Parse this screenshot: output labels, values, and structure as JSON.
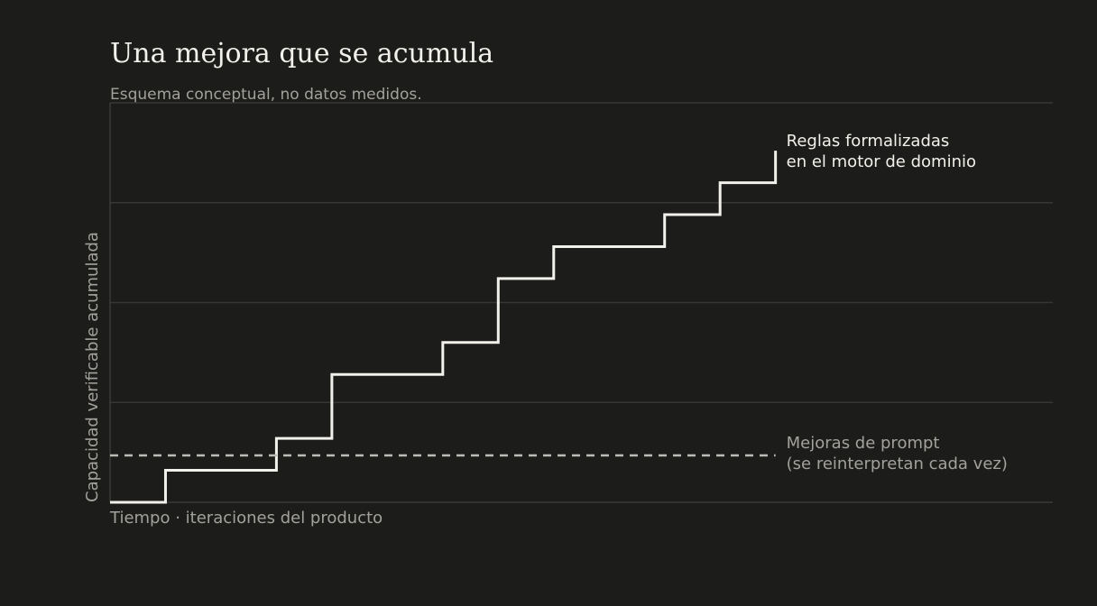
{
  "title": "Una mejora que se acumula",
  "subtitle": "Esquema conceptual, no datos medidos.",
  "colors": {
    "background": "#1c1c1b",
    "accumulated_line": "#f2f0ea",
    "baseline_line": "#bdbbb5",
    "grid": "#363634",
    "muted_text": "#a3a19b"
  },
  "chart_data": {
    "type": "line",
    "title": "Una mejora que se acumula",
    "subtitle": "Esquema conceptual, no datos medidos.",
    "xlabel": "Tiempo · iteraciones del producto",
    "ylabel": "Capacidad verificable acumulada",
    "xlim": [
      0,
      17
    ],
    "ylim": [
      0,
      4
    ],
    "grid": true,
    "tick_labels": false,
    "series": [
      {
        "name": "Reglas formalizadas\nen el motor de dominio",
        "style": "solid",
        "step": true,
        "x": [
          0,
          1,
          3,
          4,
          6,
          7,
          8,
          10,
          11,
          12,
          12
        ],
        "y": [
          0,
          0.32,
          0.64,
          1.28,
          1.6,
          2.24,
          2.56,
          2.88,
          3.2,
          3.2,
          3.52
        ]
      },
      {
        "name": "Mejoras de prompt\n(se reinterpretan cada vez)",
        "style": "dashed",
        "x": [
          0,
          12
        ],
        "y": [
          0.47,
          0.47
        ]
      }
    ]
  }
}
